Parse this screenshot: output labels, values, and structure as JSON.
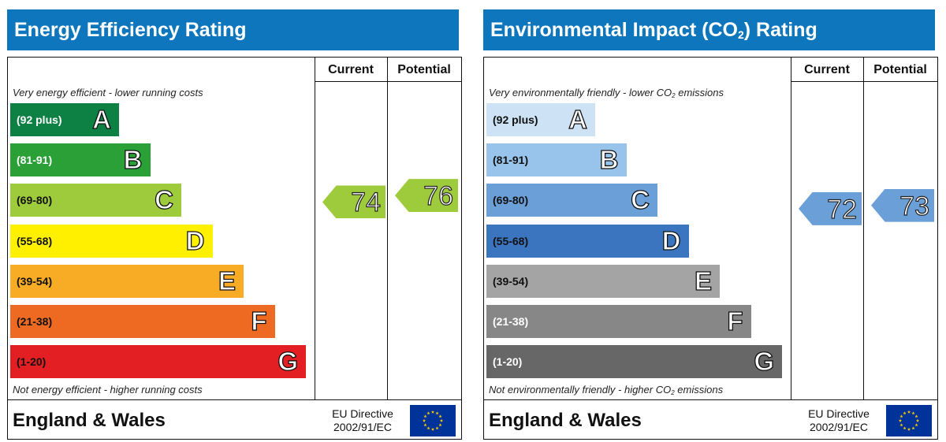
{
  "chart_data": [
    {
      "type": "table",
      "title": "Energy Efficiency Rating",
      "columns": [
        "Current",
        "Potential"
      ],
      "top_note": "Very energy efficient - lower running costs",
      "bottom_note": "Not energy efficient - higher running costs",
      "bands": [
        {
          "range": "(92 plus)",
          "letter": "A",
          "color": "#0d8043",
          "text_color": "#ffffff"
        },
        {
          "range": "(81-91)",
          "letter": "B",
          "color": "#2aa036",
          "text_color": "#ffffff"
        },
        {
          "range": "(69-80)",
          "letter": "C",
          "color": "#9ecb3c",
          "text_color": "#111111"
        },
        {
          "range": "(55-68)",
          "letter": "D",
          "color": "#fff000",
          "text_color": "#111111"
        },
        {
          "range": "(39-54)",
          "letter": "E",
          "color": "#f8ac26",
          "text_color": "#111111"
        },
        {
          "range": "(21-38)",
          "letter": "F",
          "color": "#ee6a22",
          "text_color": "#111111"
        },
        {
          "range": "(1-20)",
          "letter": "G",
          "color": "#e41f24",
          "text_color": "#111111"
        }
      ],
      "current": {
        "value": 74,
        "band": "C",
        "color": "#9ecb3c"
      },
      "potential": {
        "value": 76,
        "band": "C",
        "color": "#9ecb3c"
      },
      "footer_country": "England & Wales",
      "footer_directive": [
        "EU Directive",
        "2002/91/EC"
      ]
    },
    {
      "type": "table",
      "title": "Environmental Impact (CO",
      "title_sub": "2",
      "title_end": ") Rating",
      "columns": [
        "Current",
        "Potential"
      ],
      "top_note": "Very environmentally friendly - lower CO",
      "top_note_sub": "2",
      "top_note_end": " emissions",
      "bottom_note": "Not environmentally friendly - higher CO",
      "bottom_note_sub": "2",
      "bottom_note_end": " emissions",
      "bands": [
        {
          "range": "(92 plus)",
          "letter": "A",
          "color": "#cde2f5",
          "text_color": "#111111"
        },
        {
          "range": "(81-91)",
          "letter": "B",
          "color": "#98c3ea",
          "text_color": "#111111"
        },
        {
          "range": "(69-80)",
          "letter": "C",
          "color": "#6a9fd8",
          "text_color": "#111111"
        },
        {
          "range": "(55-68)",
          "letter": "D",
          "color": "#3b75c0",
          "text_color": "#111111"
        },
        {
          "range": "(39-54)",
          "letter": "E",
          "color": "#a4a4a4",
          "text_color": "#111111"
        },
        {
          "range": "(21-38)",
          "letter": "F",
          "color": "#878787",
          "text_color": "#ffffff"
        },
        {
          "range": "(1-20)",
          "letter": "G",
          "color": "#676767",
          "text_color": "#ffffff"
        }
      ],
      "current": {
        "value": 72,
        "band": "C",
        "color": "#6a9fd8"
      },
      "potential": {
        "value": 73,
        "band": "C",
        "color": "#6a9fd8"
      },
      "footer_country": "England & Wales",
      "footer_directive": [
        "EU Directive",
        "2002/91/EC"
      ]
    }
  ],
  "colors": {
    "title_bar": "#0e76bc",
    "eu_flag_blue": "#003399",
    "eu_flag_stars": "#ffcc00"
  },
  "icons": {
    "eu_flag": "eu-flag-icon"
  }
}
